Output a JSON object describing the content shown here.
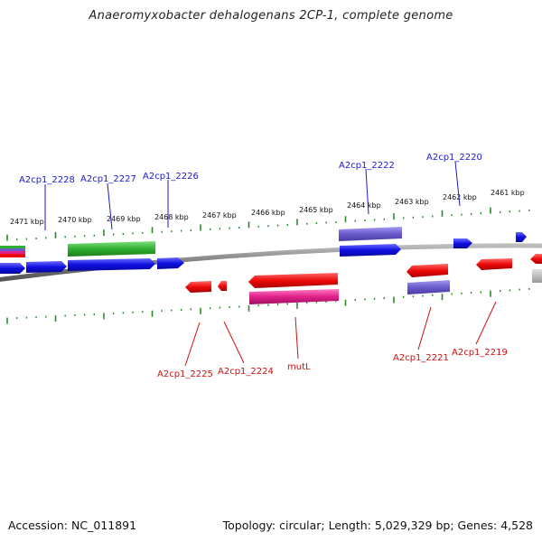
{
  "title": "Anaeromyxobacter dehalogenans 2CP-1, complete genome",
  "footer": {
    "accession": "Accession: NC_011891",
    "topology": "Topology: circular; Length: 5,029,329 bp; Genes: 4,528"
  },
  "colors": {
    "forward_label": "#1a1acc",
    "reverse_label": "#cc1111",
    "tick": "#2a8a2a",
    "backbone": "#888888",
    "blue_gene": "#1010e0",
    "red_gene": "#ee0a0a",
    "green_gene": "#30b030",
    "purple_gene": "#6a5acd",
    "pink_gene": "#e0208a"
  },
  "scale_labels": [
    "2471 kbp",
    "2470 kbp",
    "2469 kbp",
    "2468 kbp",
    "2467 kbp",
    "2466 kbp",
    "2465 kbp",
    "2464 kbp",
    "2463 kbp",
    "2462 kbp",
    "2461 kbp"
  ],
  "forward_labels": [
    "A2cp1_2228",
    "A2cp1_2227",
    "A2cp1_2226",
    "A2cp1_2222",
    "A2cp1_2220"
  ],
  "reverse_labels": [
    "A2cp1_2225",
    "A2cp1_2224",
    "mutL",
    "A2cp1_2221",
    "A2cp1_2219"
  ]
}
